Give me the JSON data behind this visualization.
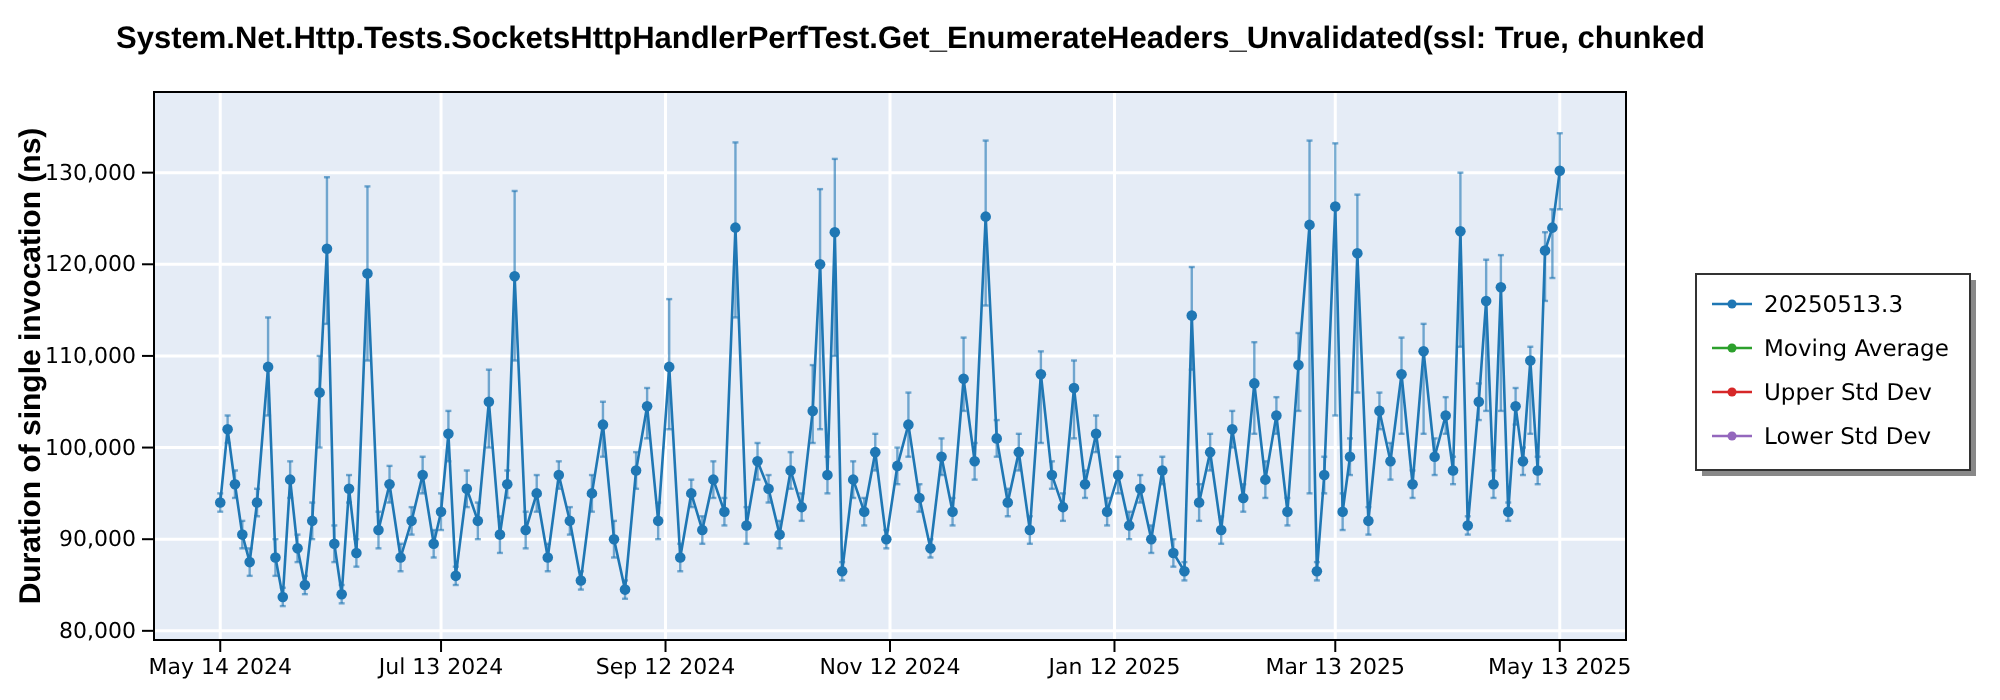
{
  "chart_data": {
    "type": "line",
    "title": "System.Net.Http.Tests.SocketsHttpHandlerPerfTest.Get_EnumerateHeaders_Unvalidated(ssl: True, chunked",
    "ylabel": "Duration of single invocation (ns)",
    "x": [
      "2024-05-14",
      "2024-05-16",
      "2024-05-18",
      "2024-05-20",
      "2024-05-22",
      "2024-05-24",
      "2024-05-27",
      "2024-05-29",
      "2024-05-31",
      "2024-06-02",
      "2024-06-04",
      "2024-06-06",
      "2024-06-08",
      "2024-06-10",
      "2024-06-12",
      "2024-06-14",
      "2024-06-16",
      "2024-06-18",
      "2024-06-20",
      "2024-06-23",
      "2024-06-26",
      "2024-06-29",
      "2024-07-02",
      "2024-07-05",
      "2024-07-08",
      "2024-07-11",
      "2024-07-13",
      "2024-07-15",
      "2024-07-17",
      "2024-07-20",
      "2024-07-23",
      "2024-07-26",
      "2024-07-29",
      "2024-07-31",
      "2024-08-02",
      "2024-08-05",
      "2024-08-08",
      "2024-08-11",
      "2024-08-14",
      "2024-08-17",
      "2024-08-20",
      "2024-08-23",
      "2024-08-26",
      "2024-08-29",
      "2024-09-01",
      "2024-09-04",
      "2024-09-07",
      "2024-09-10",
      "2024-09-13",
      "2024-09-16",
      "2024-09-19",
      "2024-09-22",
      "2024-09-25",
      "2024-09-28",
      "2024-10-01",
      "2024-10-04",
      "2024-10-07",
      "2024-10-10",
      "2024-10-13",
      "2024-10-16",
      "2024-10-19",
      "2024-10-22",
      "2024-10-24",
      "2024-10-26",
      "2024-10-28",
      "2024-10-30",
      "2024-11-02",
      "2024-11-05",
      "2024-11-08",
      "2024-11-11",
      "2024-11-14",
      "2024-11-17",
      "2024-11-20",
      "2024-11-23",
      "2024-11-26",
      "2024-11-29",
      "2024-12-02",
      "2024-12-05",
      "2024-12-08",
      "2024-12-11",
      "2024-12-14",
      "2024-12-17",
      "2024-12-20",
      "2024-12-23",
      "2024-12-26",
      "2024-12-29",
      "2025-01-01",
      "2025-01-04",
      "2025-01-07",
      "2025-01-10",
      "2025-01-13",
      "2025-01-16",
      "2025-01-19",
      "2025-01-22",
      "2025-01-25",
      "2025-01-28",
      "2025-01-31",
      "2025-02-02",
      "2025-02-04",
      "2025-02-07",
      "2025-02-10",
      "2025-02-13",
      "2025-02-16",
      "2025-02-19",
      "2025-02-22",
      "2025-02-25",
      "2025-02-28",
      "2025-03-03",
      "2025-03-06",
      "2025-03-08",
      "2025-03-10",
      "2025-03-13",
      "2025-03-15",
      "2025-03-17",
      "2025-03-19",
      "2025-03-22",
      "2025-03-25",
      "2025-03-28",
      "2025-03-31",
      "2025-04-03",
      "2025-04-06",
      "2025-04-09",
      "2025-04-12",
      "2025-04-14",
      "2025-04-16",
      "2025-04-18",
      "2025-04-21",
      "2025-04-23",
      "2025-04-25",
      "2025-04-27",
      "2025-04-29",
      "2025-05-01",
      "2025-05-03",
      "2025-05-05",
      "2025-05-07",
      "2025-05-09",
      "2025-05-11",
      "2025-05-13"
    ],
    "series": [
      {
        "name": "20250513.3",
        "color": "#1f77b4",
        "values": [
          94000,
          102000,
          96000,
          90500,
          87500,
          94000,
          108800,
          88000,
          83700,
          96500,
          89000,
          85000,
          92000,
          106000,
          121700,
          89500,
          84000,
          95500,
          88500,
          119000,
          91000,
          96000,
          88000,
          92000,
          97000,
          89500,
          93000,
          101500,
          86000,
          95500,
          92000,
          105000,
          90500,
          96000,
          118700,
          91000,
          95000,
          88000,
          97000,
          92000,
          85500,
          95000,
          102500,
          90000,
          84500,
          97500,
          104500,
          92000,
          108800,
          88000,
          95000,
          91000,
          96500,
          93000,
          124000,
          91500,
          98500,
          95500,
          90500,
          97500,
          93500,
          104000,
          120000,
          97000,
          123500,
          86500,
          96500,
          93000,
          99500,
          90000,
          98000,
          102500,
          94500,
          89000,
          99000,
          93000,
          107500,
          98500,
          125200,
          101000,
          94000,
          99500,
          91000,
          108000,
          97000,
          93500,
          106500,
          96000,
          101500,
          93000,
          97000,
          91500,
          95500,
          90000,
          97500,
          88500,
          86500,
          114400,
          94000,
          99500,
          91000,
          102000,
          94500,
          107000,
          96500,
          103500,
          93000,
          109000,
          124300,
          86500,
          97000,
          126300,
          93000,
          99000,
          121200,
          92000,
          104000,
          98500,
          108000,
          96000,
          110500,
          99000,
          103500,
          97500,
          123600,
          91500,
          105000,
          116000,
          96000,
          117500,
          93000,
          104500,
          98500,
          109500,
          97500,
          121500,
          124000,
          130200
        ],
        "errors": [
          1000,
          1500,
          1500,
          1500,
          1500,
          1500,
          [
            103500,
            114200
          ],
          2000,
          1000,
          2000,
          1500,
          1000,
          2000,
          [
            100000,
            110000
          ],
          [
            113500,
            129500
          ],
          2000,
          1000,
          1500,
          1500,
          [
            109500,
            128500
          ],
          2000,
          2000,
          1500,
          1500,
          2000,
          1500,
          2000,
          [
            98500,
            104000
          ],
          1000,
          2000,
          2000,
          [
            100000,
            108500
          ],
          2000,
          1500,
          [
            109500,
            128000
          ],
          2000,
          2000,
          1500,
          1500,
          1500,
          1000,
          2000,
          [
            99000,
            105000
          ],
          2000,
          1000,
          2000,
          [
            101000,
            106500
          ],
          2000,
          [
            102000,
            116200
          ],
          1500,
          1500,
          1500,
          2000,
          1500,
          [
            114200,
            133300
          ],
          2000,
          2000,
          1500,
          1500,
          2000,
          1500,
          [
            100500,
            109000
          ],
          [
            102000,
            128200
          ],
          2000,
          [
            110000,
            131500
          ],
          1000,
          2000,
          1500,
          2000,
          1000,
          2000,
          [
            99000,
            106000
          ],
          1500,
          1000,
          2000,
          1500,
          [
            104000,
            112000
          ],
          2000,
          [
            115500,
            133500
          ],
          2000,
          1500,
          2000,
          1500,
          [
            100500,
            110500
          ],
          1500,
          1500,
          [
            101000,
            109500
          ],
          1500,
          2000,
          1500,
          2000,
          1500,
          1500,
          1500,
          1500,
          1500,
          1000,
          [
            108500,
            119700
          ],
          2000,
          2000,
          1500,
          2000,
          1500,
          [
            101500,
            111500
          ],
          2000,
          2000,
          1500,
          [
            104000,
            112500
          ],
          [
            95000,
            133500
          ],
          1000,
          2000,
          [
            103500,
            133200
          ],
          2000,
          2000,
          [
            106000,
            127600
          ],
          1500,
          2000,
          2000,
          [
            101500,
            112000
          ],
          1500,
          [
            101500,
            113500
          ],
          2000,
          2000,
          1500,
          [
            111000,
            130000
          ],
          1000,
          2000,
          [
            104000,
            120500
          ],
          1500,
          [
            104000,
            121000
          ],
          1000,
          2000,
          1500,
          [
            101500,
            111000
          ],
          1500,
          [
            116000,
            123500
          ],
          [
            118500,
            126000
          ],
          [
            126000,
            134300
          ]
        ]
      },
      {
        "name": "Moving Average",
        "color": "#2ca02c",
        "values": [
          null,
          null,
          null,
          null,
          null,
          null,
          null,
          null,
          null,
          null,
          null,
          null,
          null,
          null,
          null,
          null,
          null,
          null,
          null,
          null,
          null,
          null,
          null,
          null,
          null,
          null,
          null,
          null,
          null,
          null,
          null,
          null,
          null,
          null,
          null,
          null,
          null,
          null,
          null,
          null,
          null,
          null,
          null,
          null,
          null,
          null,
          null,
          null,
          null,
          null,
          null,
          null,
          null,
          null,
          null,
          null,
          null,
          null,
          null,
          null,
          null,
          null,
          null,
          null,
          null,
          null,
          null,
          null,
          null,
          null,
          null,
          null,
          null,
          null,
          null,
          null,
          null,
          null,
          null,
          null,
          null,
          null,
          null,
          null,
          null,
          null,
          null,
          null,
          null,
          null,
          null,
          null,
          null,
          null,
          null,
          null,
          null,
          null,
          null,
          null,
          null,
          null,
          null,
          null,
          null,
          null,
          null,
          null,
          null,
          null,
          null,
          null,
          null,
          null,
          null,
          null,
          null,
          null,
          null,
          null,
          null,
          null,
          null,
          null,
          null,
          null,
          null,
          null,
          null,
          null,
          null,
          null,
          null,
          null,
          null,
          null,
          null,
          null
        ]
      },
      {
        "name": "Upper Std Dev",
        "color": "#d62728",
        "values": [
          null,
          null,
          null,
          null,
          null,
          null,
          null,
          null,
          null,
          null,
          null,
          null,
          null,
          null,
          null,
          null,
          null,
          null,
          null,
          null,
          null,
          null,
          null,
          null,
          null,
          null,
          null,
          null,
          null,
          null,
          null,
          null,
          null,
          null,
          null,
          null,
          null,
          null,
          null,
          null,
          null,
          null,
          null,
          null,
          null,
          null,
          null,
          null,
          null,
          null,
          null,
          null,
          null,
          null,
          null,
          null,
          null,
          null,
          null,
          null,
          null,
          null,
          null,
          null,
          null,
          null,
          null,
          null,
          null,
          null,
          null,
          null,
          null,
          null,
          null,
          null,
          null,
          null,
          null,
          null,
          null,
          null,
          null,
          null,
          null,
          null,
          null,
          null,
          null,
          null,
          null,
          null,
          null,
          null,
          null,
          null,
          null,
          null,
          null,
          null,
          null,
          null,
          null,
          null,
          null,
          null,
          null,
          null,
          null,
          null,
          null,
          null,
          null,
          null,
          null,
          null,
          null,
          null,
          null,
          null,
          null,
          null,
          null,
          null,
          null,
          null,
          null,
          null,
          null,
          null,
          null,
          null,
          null,
          null,
          null,
          null,
          null,
          null
        ]
      },
      {
        "name": "Lower Std Dev",
        "color": "#9467bd",
        "values": [
          null,
          null,
          null,
          null,
          null,
          null,
          null,
          null,
          null,
          null,
          null,
          null,
          null,
          null,
          null,
          null,
          null,
          null,
          null,
          null,
          null,
          null,
          null,
          null,
          null,
          null,
          null,
          null,
          null,
          null,
          null,
          null,
          null,
          null,
          null,
          null,
          null,
          null,
          null,
          null,
          null,
          null,
          null,
          null,
          null,
          null,
          null,
          null,
          null,
          null,
          null,
          null,
          null,
          null,
          null,
          null,
          null,
          null,
          null,
          null,
          null,
          null,
          null,
          null,
          null,
          null,
          null,
          null,
          null,
          null,
          null,
          null,
          null,
          null,
          null,
          null,
          null,
          null,
          null,
          null,
          null,
          null,
          null,
          null,
          null,
          null,
          null,
          null,
          null,
          null,
          null,
          null,
          null,
          null,
          null,
          null,
          null,
          null,
          null,
          null,
          null,
          null,
          null,
          null,
          null,
          null,
          null,
          null,
          null,
          null,
          null,
          null,
          null,
          null,
          null,
          null,
          null,
          null,
          null,
          null,
          null,
          null,
          null,
          null,
          null,
          null,
          null,
          null,
          null,
          null,
          null,
          null,
          null,
          null,
          null,
          null,
          null,
          null
        ]
      }
    ],
    "xlim": [
      "2024-04-26",
      "2025-05-31"
    ],
    "xticks": [
      {
        "value": "2024-05-14",
        "label": "May 14 2024"
      },
      {
        "value": "2024-07-13",
        "label": "Jul 13 2024"
      },
      {
        "value": "2024-09-12",
        "label": "Sep 12 2024"
      },
      {
        "value": "2024-11-12",
        "label": "Nov 12 2024"
      },
      {
        "value": "2025-01-12",
        "label": "Jan 12 2025"
      },
      {
        "value": "2025-03-13",
        "label": "Mar 13 2025"
      },
      {
        "value": "2025-05-13",
        "label": "May 13 2025"
      }
    ],
    "ylim": [
      79000,
      138800
    ],
    "yticks": [
      {
        "value": 80000,
        "label": "80,000"
      },
      {
        "value": 90000,
        "label": "90,000"
      },
      {
        "value": 100000,
        "label": "100,000"
      },
      {
        "value": 110000,
        "label": "110,000"
      },
      {
        "value": 120000,
        "label": "120,000"
      },
      {
        "value": 130000,
        "label": "130,000"
      }
    ],
    "grid": true,
    "legend": "right",
    "marker": "circle",
    "line_style": "solid"
  }
}
